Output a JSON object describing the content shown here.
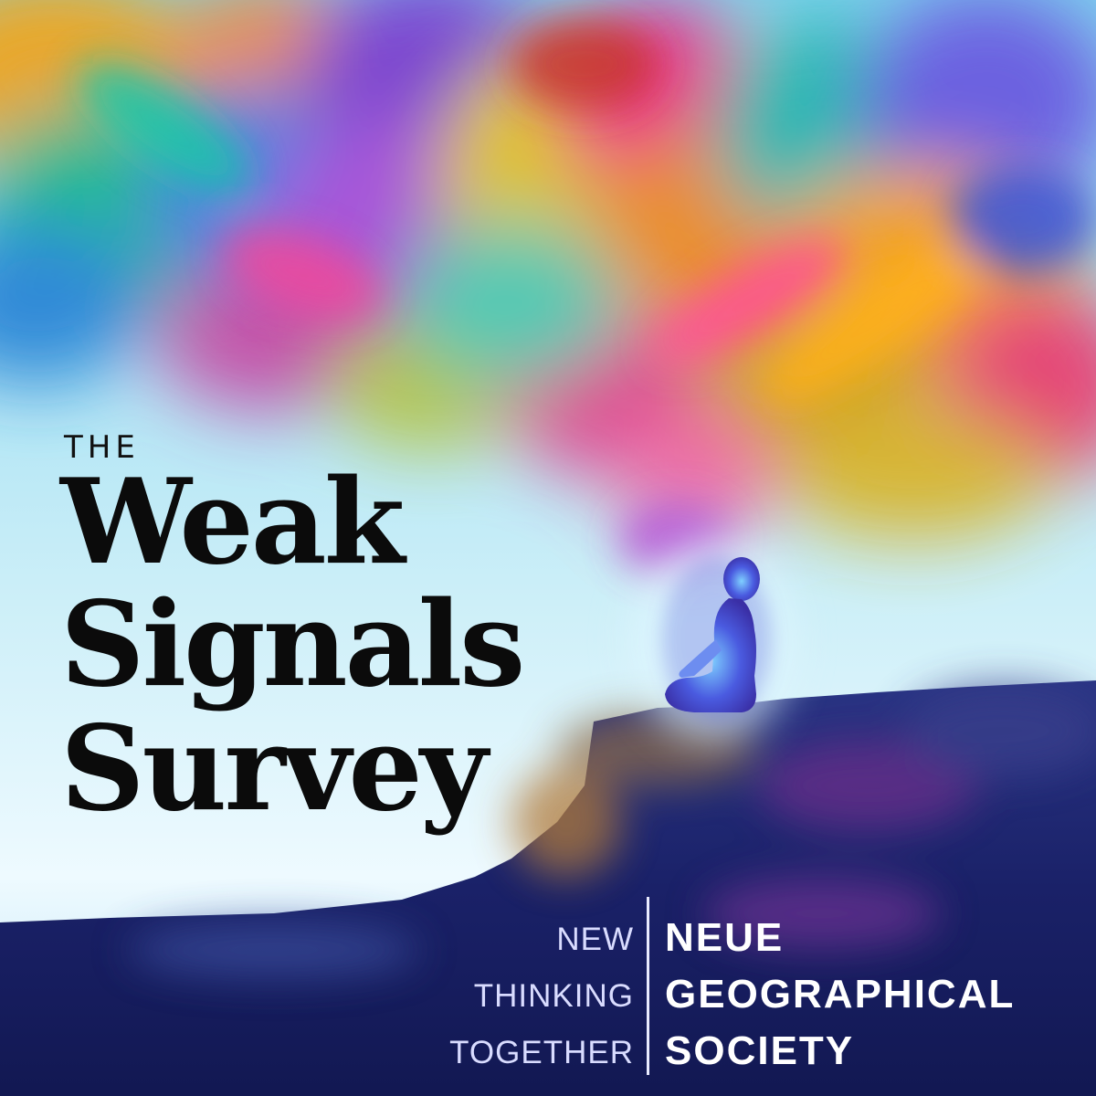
{
  "title": {
    "prefix": "THE",
    "lines": [
      "Weak",
      "Signals",
      "Survey"
    ]
  },
  "tagline": [
    "NEW",
    "THINKING",
    "TOGETHER"
  ],
  "society": [
    "NEUE",
    "GEOGRAPHICAL",
    "SOCIETY"
  ],
  "illustration": {
    "subject": "meditating-figure-icon",
    "colors": {
      "sky": "#dff5fb",
      "cliff": "#1b2470",
      "figure": "#3d46c8",
      "accent_pink": "#f0348f",
      "accent_orange": "#f7a21c",
      "accent_teal": "#25c1b7",
      "accent_purple": "#9b4fd6"
    }
  }
}
